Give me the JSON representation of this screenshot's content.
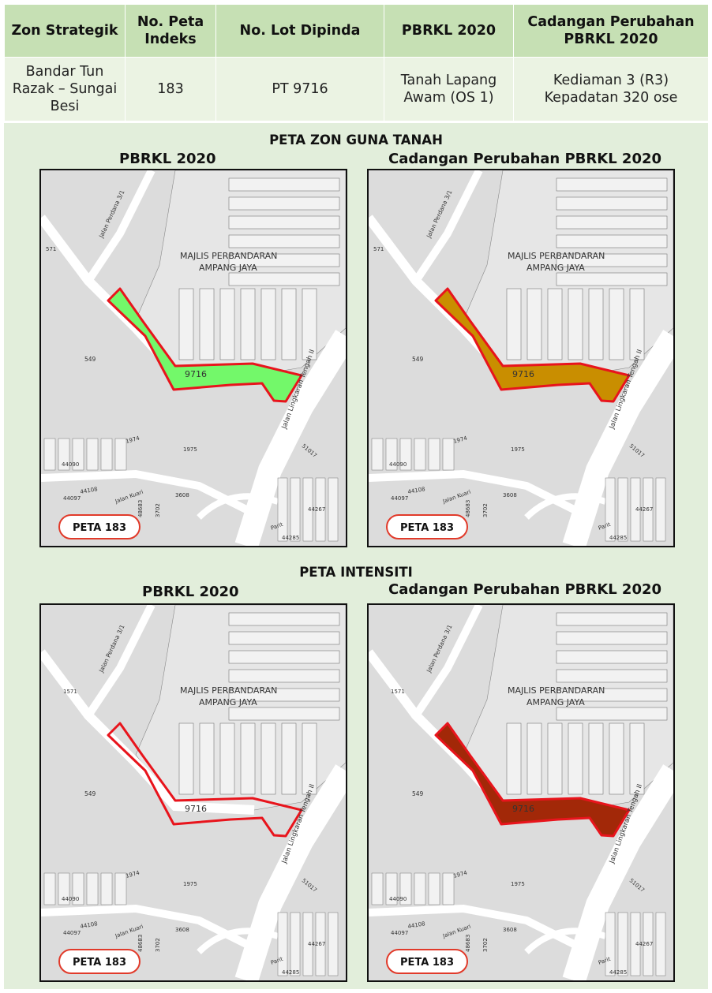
{
  "table": {
    "headers": [
      "Zon Strategik",
      "No. Peta Indeks",
      "No. Lot Dipinda",
      "PBRKL 2020",
      "Cadangan Perubahan PBRKL 2020"
    ],
    "row": {
      "zon": "Bandar Tun Razak – Sungai Besi",
      "peta": "183",
      "lot": "PT 9716",
      "pbrkl": "Tanah Lapang Awam (OS 1)",
      "cadangan": "Kediaman 3 (R3) Kepadatan 320 ose"
    }
  },
  "sections": {
    "zon_guna_tanah": "PETA ZON GUNA TANAH",
    "intensiti": "PETA INTENSITI"
  },
  "map_titles": {
    "current": "PBRKL 2020",
    "proposed": "Cadangan Perubahan PBRKL 2020"
  },
  "map_labels": {
    "mpaj_line1": "MAJLIS PERBANDARAN",
    "mpaj_line2": "AMPANG JAYA",
    "lot": "9716",
    "jalan_perdana": "Jalan Perdana 3/1",
    "jalan_lingkaran": "Jalan Lingkaran Tengah II",
    "jalan_kuari": "Jalan Kuari",
    "parit": "Parit",
    "lot_549": "549",
    "lot_1571": "1571",
    "lot_571": "571",
    "lot_1974": "1974",
    "lot_1975": "1975",
    "lot_51017": "51017",
    "lot_3608": "3608",
    "lot_3702": "3702",
    "lot_48683": "48683",
    "lot_44267": "44267",
    "lot_44285": "44285",
    "lot_44090": "44090",
    "lot_44108": "44108",
    "lot_44097": "44097"
  },
  "badge": "PETA 183",
  "colors": {
    "header_bg": "#c6e0b4",
    "row_bg": "#ebf3e3",
    "panel_bg": "#e2eedb",
    "outline": "#e8141c",
    "zon_current": "#73f86a",
    "zon_proposed": "#c98e00",
    "intensiti_current": "none",
    "intensiti_proposed": "#a22808"
  }
}
